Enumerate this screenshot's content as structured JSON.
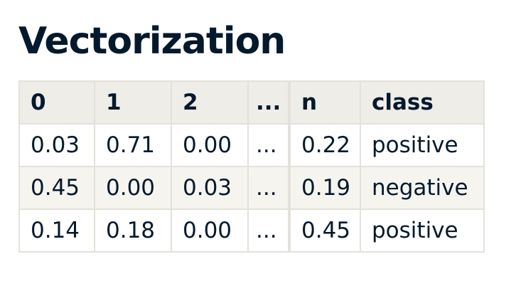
{
  "title": "Vectorization",
  "table": {
    "headers": [
      "0",
      "1",
      "2",
      "...",
      "n",
      "class"
    ],
    "rows": [
      [
        "0.03",
        "0.71",
        "0.00",
        "...",
        "0.22",
        "positive"
      ],
      [
        "0.45",
        "0.00",
        "0.03",
        "...",
        "0.19",
        "negative"
      ],
      [
        "0.14",
        "0.18",
        "0.00",
        "...",
        "0.45",
        "positive"
      ]
    ]
  },
  "colors": {
    "text": "#05192d",
    "header_bg": "#efede7",
    "stripe_bg": "#f6f4ef",
    "border": "#e4e1da"
  }
}
